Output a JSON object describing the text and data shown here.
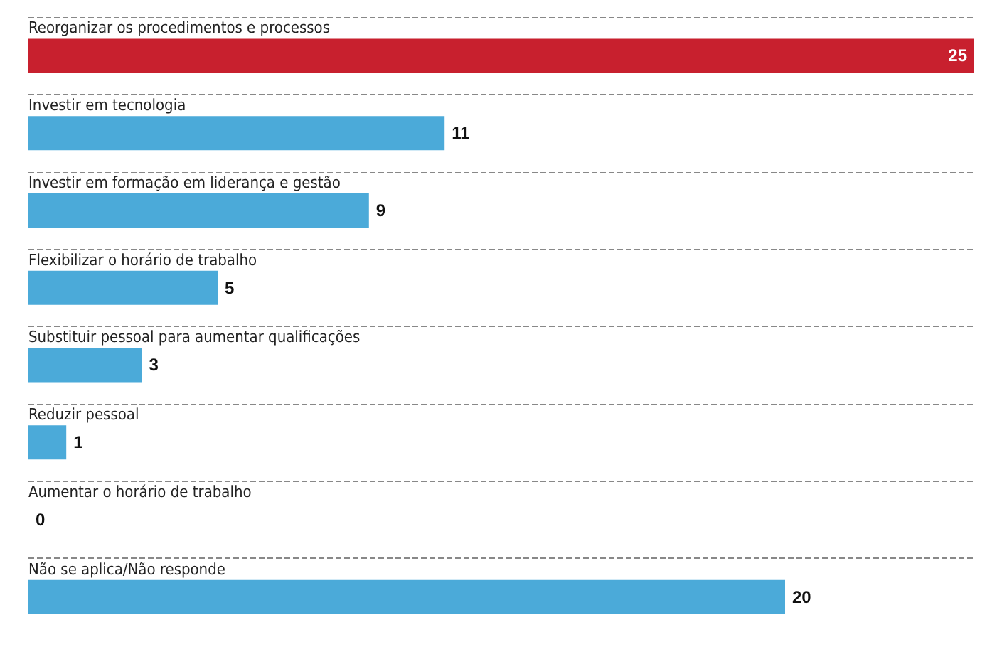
{
  "chart_data": {
    "type": "bar",
    "orientation": "horizontal",
    "categories": [
      "Reorganizar os procedimentos e processos",
      "Investir em tecnologia",
      "Investir em formação em liderança e gestão",
      "Flexibilizar o horário de trabalho",
      "Substituir pessoal para aumentar qualificações",
      "Reduzir pessoal",
      "Aumentar o horário de trabalho",
      "Não se aplica/Não responde"
    ],
    "values": [
      25,
      11,
      9,
      5,
      3,
      1,
      0,
      20
    ],
    "colors": [
      "#c8202e",
      "#4baad9",
      "#4baad9",
      "#4baad9",
      "#4baad9",
      "#4baad9",
      "#4baad9",
      "#4baad9"
    ],
    "data_labels": true,
    "grid": "y"
  }
}
